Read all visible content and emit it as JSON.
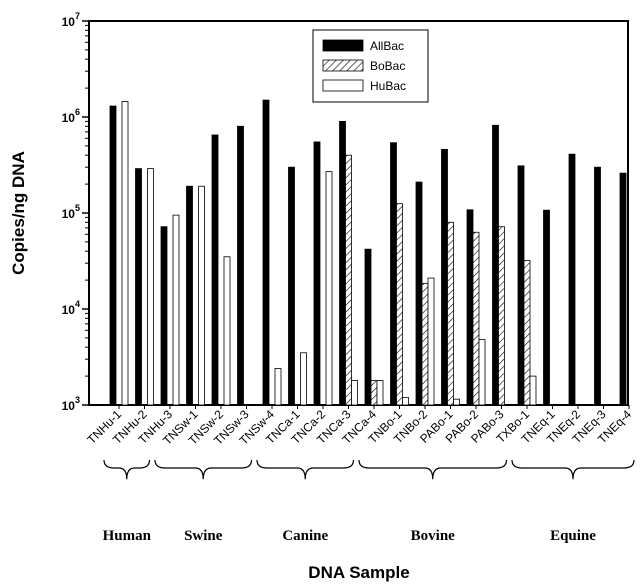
{
  "chart_data": {
    "type": "bar",
    "title": "",
    "xlabel": "DNA Sample",
    "ylabel": "Copies/ng DNA",
    "yscale": "log",
    "ylim": [
      1000,
      10000000
    ],
    "yticks": [
      {
        "value": 1000,
        "base": "10",
        "exp": "3"
      },
      {
        "value": 10000,
        "base": "10",
        "exp": "4"
      },
      {
        "value": 100000,
        "base": "10",
        "exp": "5"
      },
      {
        "value": 1000000,
        "base": "10",
        "exp": "6"
      },
      {
        "value": 10000000,
        "base": "10",
        "exp": "7"
      }
    ],
    "legend_position": "top-center",
    "categories": [
      "TNHu-1",
      "TNHu-2",
      "TNHu-3",
      "TNSw-1",
      "TNSw-2",
      "TNSw-3",
      "TNSw-4",
      "TNCa-1",
      "TNCa-2",
      "TNCa-3",
      "TNCa-4",
      "TNBo-1",
      "TNBo-2",
      "PABo-1",
      "PABo-2",
      "PABo-3",
      "TXBo-1",
      "TNEq-1",
      "TNEq-2",
      "TNEq-3",
      "TNEq-4"
    ],
    "series": [
      {
        "name": "AllBac",
        "style": "solid",
        "color": "#000000",
        "values": [
          1300000,
          290000,
          72000,
          190000,
          650000,
          800000,
          1500000,
          300000,
          550000,
          900000,
          42000,
          540000,
          210000,
          460000,
          108000,
          820000,
          310000,
          107000,
          410000,
          300000,
          260000
        ]
      },
      {
        "name": "BoBac",
        "style": "hatched",
        "color": "#ffffff",
        "values": [
          null,
          null,
          null,
          null,
          null,
          null,
          null,
          null,
          null,
          400000,
          1800,
          125000,
          18500,
          80000,
          63000,
          72000,
          32000,
          null,
          null,
          null,
          null
        ]
      },
      {
        "name": "HuBac",
        "style": "open",
        "color": "#ffffff",
        "values": [
          1450000,
          290000,
          95000,
          190000,
          35000,
          null,
          2400,
          3500,
          270000,
          1800,
          1800,
          1200,
          21000,
          1150,
          4800,
          null,
          2000,
          null,
          null,
          null,
          null
        ]
      }
    ],
    "groups": [
      {
        "name": "Human",
        "from": 0,
        "to": 1
      },
      {
        "name": "Swine",
        "from": 2,
        "to": 5
      },
      {
        "name": "Canine",
        "from": 6,
        "to": 9
      },
      {
        "name": "Bovine",
        "from": 10,
        "to": 15
      },
      {
        "name": "Equine",
        "from": 16,
        "to": 20
      }
    ]
  }
}
